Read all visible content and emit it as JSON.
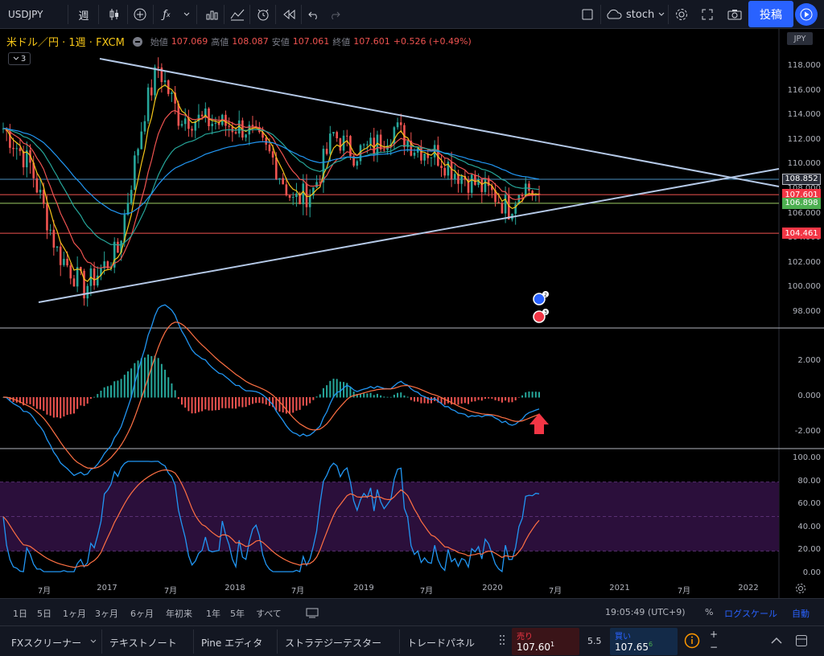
{
  "toolbar": {
    "symbol": "USDJPY",
    "interval": "週",
    "indicator_name": "stoch",
    "post_label": "投稿"
  },
  "legend": {
    "symbol_text": "米ドル／円 · 1週 · FXCM",
    "open_label": "始値",
    "open": "107.069",
    "high_label": "高値",
    "high": "108.087",
    "low_label": "安値",
    "low": "107.061",
    "close_label": "終値",
    "close": "107.601",
    "change": "+0.526 (+0.49%)",
    "collapsed_count": "3"
  },
  "price_axis": {
    "currency": "JPY",
    "ticks": [
      "118.000",
      "116.000",
      "114.000",
      "112.000",
      "110.000",
      "108.000",
      "106.000",
      "104.000",
      "102.000",
      "100.000",
      "98.000"
    ],
    "labels": [
      {
        "text": "108.852",
        "color": "#2a2e39",
        "border": "#b2b5be"
      },
      {
        "text": "107.601",
        "color": "#f23645"
      },
      {
        "text": "106.898",
        "color": "#4caf50"
      },
      {
        "text": "104.461",
        "color": "#f23645"
      }
    ]
  },
  "macd_axis": {
    "ticks": [
      "2.000",
      "0.000",
      "-2.000"
    ]
  },
  "stoch_axis": {
    "ticks": [
      "100.00",
      "80.00",
      "60.00",
      "40.00",
      "20.00",
      "0.00"
    ]
  },
  "time_axis": {
    "ticks": [
      "7月",
      "2017",
      "7月",
      "2018",
      "7月",
      "2019",
      "7月",
      "2020",
      "7月",
      "2021",
      "7月",
      "2022"
    ]
  },
  "event_badges": [
    {
      "count": "2"
    },
    {
      "count": "3"
    }
  ],
  "range_bar": {
    "ranges": [
      "1日",
      "5日",
      "1ヶ月",
      "3ヶ月",
      "6ヶ月",
      "年初来",
      "1年",
      "5年",
      "すべて"
    ],
    "clock": "19:05:49 (UTC+9)",
    "percent": "%",
    "log_scale": "ログスケール",
    "auto": "自動"
  },
  "bottom_bar": {
    "tabs": [
      "FXスクリーナー",
      "テキストノート",
      "Pine エディタ",
      "ストラテジーテスター",
      "トレードパネル"
    ],
    "sell_label": "売り",
    "sell_price": "107.60",
    "sell_sup": "1",
    "spread": "5.5",
    "buy_label": "買い",
    "buy_price": "107.65",
    "buy_sup": "6"
  },
  "colors": {
    "background": "#000000",
    "toolbar": "#131722",
    "accent": "#2962ff",
    "up": "#26a69a",
    "down": "#ef5350",
    "trendline": "#b4c8e6",
    "stoch_band": "#2b0f3b"
  }
}
